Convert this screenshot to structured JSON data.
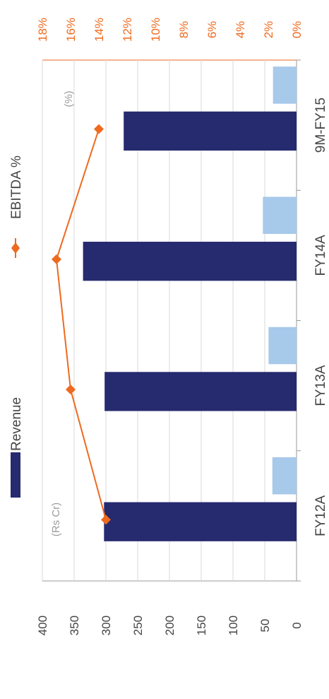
{
  "chart_data": {
    "type": "bar",
    "orientation": "rotated-90-clockwise",
    "categories": [
      "FY12A",
      "FY13A",
      "FY14A",
      "9M-FY15"
    ],
    "series": [
      {
        "name": "Revenue",
        "kind": "bar",
        "axis": "left",
        "color": "#262a6e",
        "values": [
          303,
          302,
          336,
          272
        ]
      },
      {
        "name": "",
        "kind": "bar",
        "axis": "left",
        "color": "#a7c9ea",
        "values": [
          38,
          44,
          53,
          37
        ]
      },
      {
        "name": "EBITDA %",
        "kind": "line",
        "axis": "right",
        "color": "#ee6a1f",
        "marker": "diamond",
        "values": [
          13.5,
          16.0,
          17.0,
          14.0
        ]
      }
    ],
    "left_axis": {
      "ticks": [
        "400",
        "350",
        "300",
        "250",
        "200",
        "150",
        "100",
        "50",
        "0"
      ],
      "range": [
        0,
        400
      ],
      "unit_label": "(Rs Cr)"
    },
    "right_axis": {
      "ticks": [
        "18%",
        "16%",
        "14%",
        "12%",
        "10%",
        "8%",
        "6%",
        "4%",
        "2%",
        "0%"
      ],
      "range": [
        0,
        18
      ],
      "unit_label": "(%)"
    },
    "grid": true,
    "legend": {
      "position": "top",
      "items": [
        "Revenue",
        "EBITDA %"
      ]
    }
  }
}
